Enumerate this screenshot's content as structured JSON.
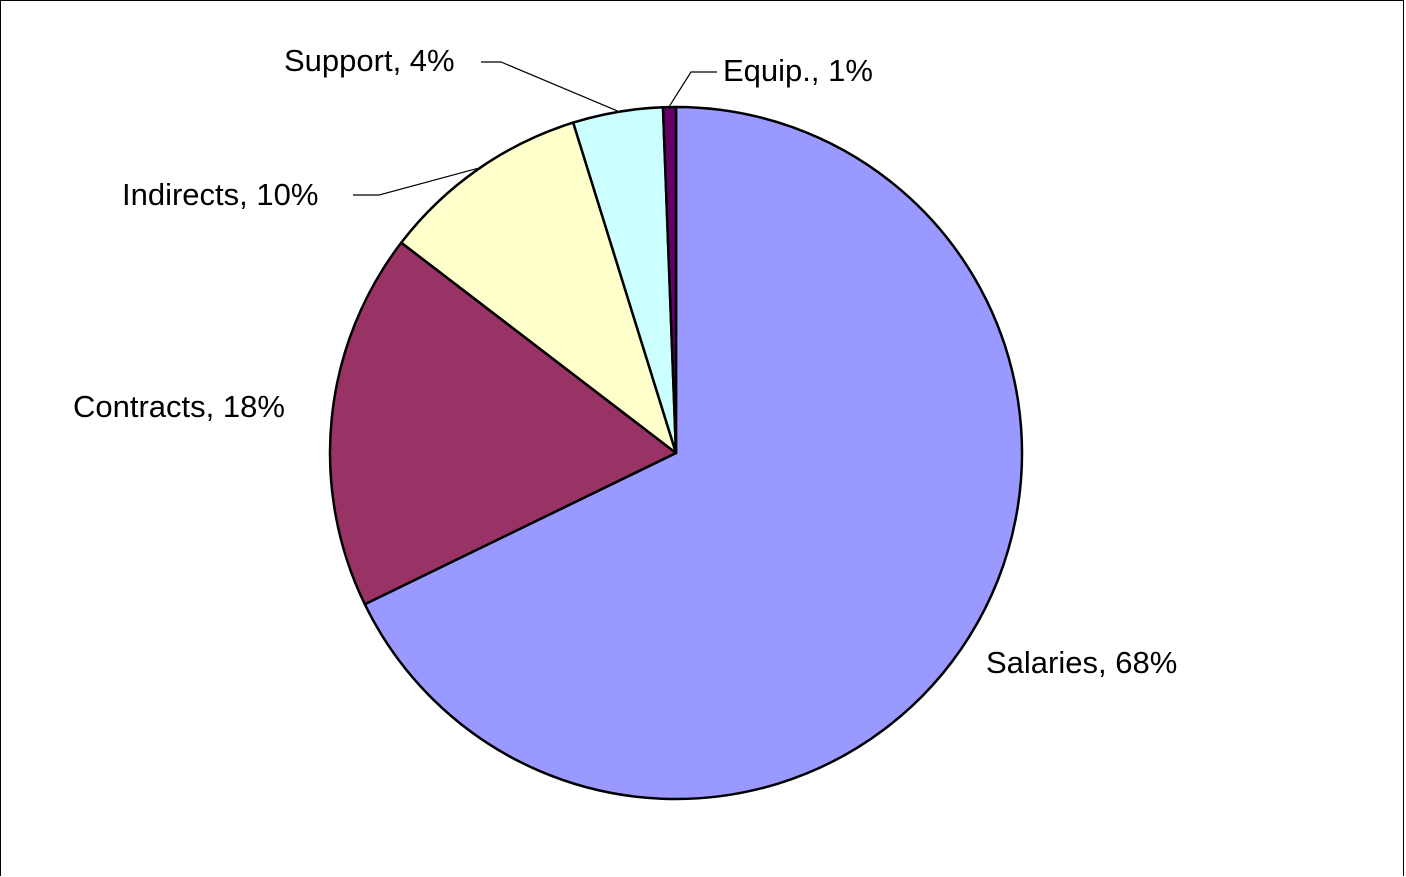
{
  "chart_data": {
    "type": "pie",
    "title": "",
    "start_angle_deg": 0,
    "direction": "clockwise",
    "slices": [
      {
        "name": "Salaries",
        "label": "Salaries, 68%",
        "value": 67.8,
        "color": "#9999FF"
      },
      {
        "name": "Contracts",
        "label": "Contracts, 18%",
        "value": 17.6,
        "color": "#993366"
      },
      {
        "name": "Indirects",
        "label": "Indirects, 10%",
        "value": 9.8,
        "color": "#FFFFCC"
      },
      {
        "name": "Support",
        "label": "Support, 4%",
        "value": 4.2,
        "color": "#CCFFFF"
      },
      {
        "name": "Equip.",
        "label": "Equip., 1%",
        "value": 0.6,
        "color": "#660066"
      }
    ],
    "legend": "none",
    "labels": "outside-with-leader-lines"
  }
}
